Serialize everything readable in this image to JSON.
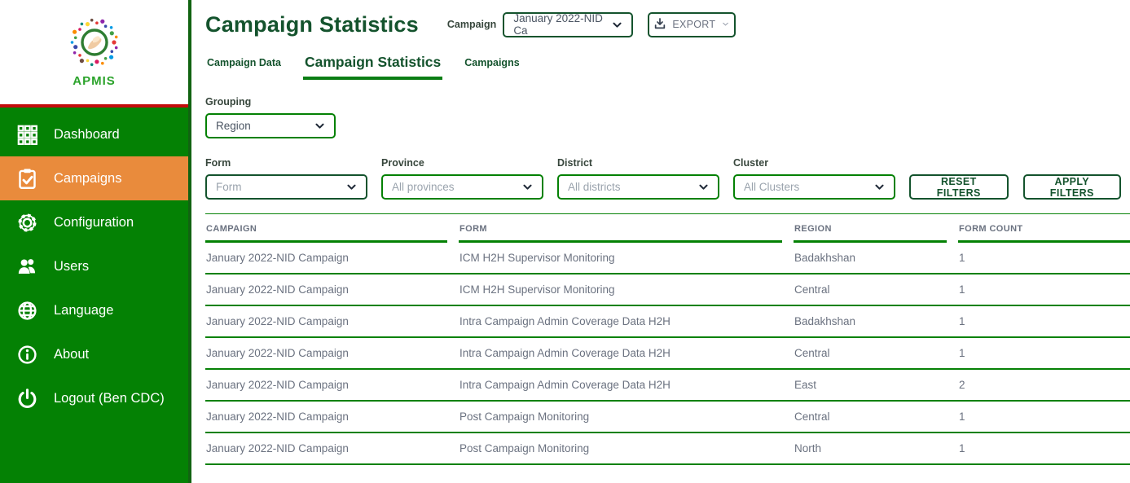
{
  "app": {
    "name": "APMIS"
  },
  "colors": {
    "sidebar_green": "#048104",
    "sidebar_border_green": "#116311",
    "active_orange": "#e98b3c",
    "dark_green": "#14532d",
    "line_green": "#068106",
    "red_divider": "#c30b0b",
    "logo_text_green": "#2ba32b",
    "row_text_gray": "#6b7280"
  },
  "sidebar": {
    "items": [
      {
        "id": "dashboard",
        "label": "Dashboard",
        "icon": "grid-icon",
        "active": false
      },
      {
        "id": "campaigns",
        "label": "Campaigns",
        "icon": "clipboard-check-icon",
        "active": true
      },
      {
        "id": "configuration",
        "label": "Configuration",
        "icon": "gear-icon",
        "active": false
      },
      {
        "id": "users",
        "label": "Users",
        "icon": "users-icon",
        "active": false
      },
      {
        "id": "language",
        "label": "Language",
        "icon": "globe-icon",
        "active": false
      },
      {
        "id": "about",
        "label": "About",
        "icon": "info-icon",
        "active": false
      },
      {
        "id": "logout",
        "label": "Logout (Ben CDC)",
        "icon": "power-icon",
        "active": false
      }
    ]
  },
  "header": {
    "title": "Campaign Statistics",
    "campaign_label": "Campaign",
    "campaign_value": "January 2022-NID Ca",
    "export_label": "EXPORT"
  },
  "tabs": [
    {
      "id": "campaign-data",
      "label": "Campaign Data",
      "active": false
    },
    {
      "id": "campaign-statistics",
      "label": "Campaign Statistics",
      "active": true
    },
    {
      "id": "campaigns",
      "label": "Campaigns",
      "active": false
    }
  ],
  "grouping": {
    "label": "Grouping",
    "value": "Region"
  },
  "filters": {
    "fields": [
      {
        "id": "form",
        "label": "Form",
        "value": "Form",
        "placeholder": true,
        "dark_border": true
      },
      {
        "id": "province",
        "label": "Province",
        "value": "All provinces",
        "placeholder": true,
        "dark_border": false
      },
      {
        "id": "district",
        "label": "District",
        "value": "All districts",
        "placeholder": true,
        "dark_border": false
      },
      {
        "id": "cluster",
        "label": "Cluster",
        "value": "All Clusters",
        "placeholder": true,
        "dark_border": false
      }
    ],
    "reset_label": "RESET FILTERS",
    "apply_label": "APPLY FILTERS"
  },
  "table": {
    "columns": [
      "CAMPAIGN",
      "FORM",
      "REGION",
      "FORM COUNT"
    ],
    "rows": [
      [
        "January 2022-NID Campaign",
        "ICM H2H Supervisor Monitoring",
        "Badakhshan",
        "1"
      ],
      [
        "January 2022-NID Campaign",
        "ICM H2H Supervisor Monitoring",
        "Central",
        "1"
      ],
      [
        "January 2022-NID Campaign",
        "Intra Campaign Admin Coverage Data H2H",
        "Badakhshan",
        "1"
      ],
      [
        "January 2022-NID Campaign",
        "Intra Campaign Admin Coverage Data H2H",
        "Central",
        "1"
      ],
      [
        "January 2022-NID Campaign",
        "Intra Campaign Admin Coverage Data H2H",
        "East",
        "2"
      ],
      [
        "January 2022-NID Campaign",
        "Post Campaign Monitoring",
        "Central",
        "1"
      ],
      [
        "January 2022-NID Campaign",
        "Post Campaign Monitoring",
        "North",
        "1"
      ]
    ]
  }
}
